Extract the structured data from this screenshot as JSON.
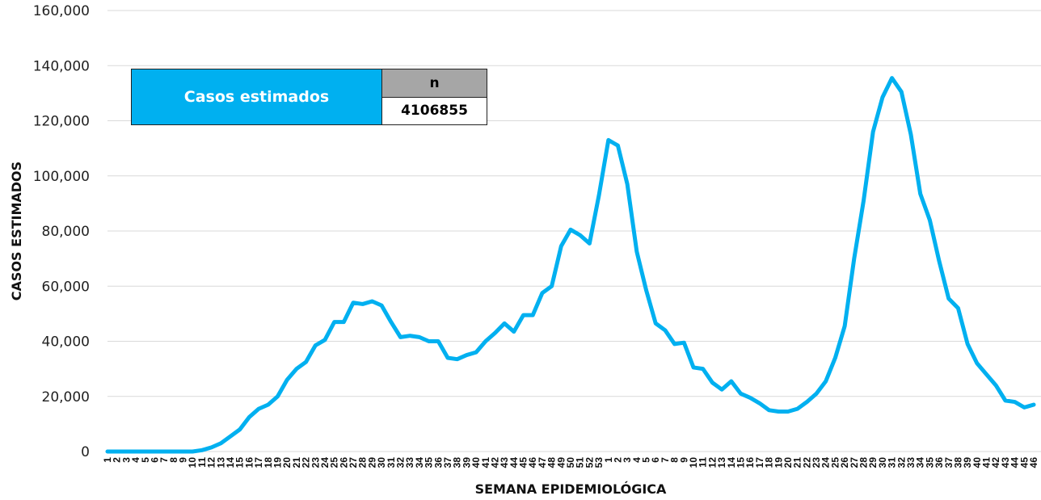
{
  "chart_data": {
    "type": "line",
    "xlabel": "SEMANA EPIDEMIOLÓGICA",
    "ylabel": "CASOS ESTIMADOS",
    "ylim": [
      0,
      160000
    ],
    "yticks": [
      0,
      20000,
      40000,
      60000,
      80000,
      100000,
      120000,
      140000,
      160000
    ],
    "grid": "horizontal",
    "line_color": "#00b0f0",
    "categories": [
      "1",
      "2",
      "3",
      "4",
      "5",
      "6",
      "7",
      "8",
      "9",
      "10",
      "11",
      "12",
      "13",
      "14",
      "15",
      "16",
      "17",
      "18",
      "19",
      "20",
      "21",
      "22",
      "23",
      "24",
      "25",
      "26",
      "27",
      "28",
      "29",
      "30",
      "31",
      "32",
      "33",
      "34",
      "35",
      "36",
      "37",
      "38",
      "39",
      "40",
      "41",
      "42",
      "43",
      "44",
      "45",
      "46",
      "47",
      "48",
      "49",
      "50",
      "51",
      "52",
      "53",
      "1",
      "2",
      "3",
      "4",
      "5",
      "6",
      "7",
      "8",
      "9",
      "10",
      "11",
      "12",
      "13",
      "14",
      "15",
      "16",
      "17",
      "18",
      "19",
      "20",
      "21",
      "22",
      "23",
      "24",
      "25",
      "26",
      "27",
      "28",
      "29",
      "30",
      "31",
      "32",
      "33",
      "34",
      "35",
      "36",
      "37",
      "38",
      "39",
      "40",
      "41",
      "42",
      "43",
      "44",
      "45",
      "46"
    ],
    "series": [
      {
        "values": [
          0,
          0,
          0,
          0,
          0,
          0,
          0,
          0,
          0,
          0,
          500,
          1500,
          3000,
          5500,
          8000,
          12500,
          15500,
          17000,
          20000,
          26000,
          30000,
          32500,
          38500,
          40500,
          47000,
          47000,
          54000,
          53500,
          54500,
          53000,
          47000,
          41500,
          42000,
          41500,
          40000,
          40000,
          34000,
          33500,
          35000,
          36000,
          40000,
          43000,
          46500,
          43500,
          49500,
          49500,
          57500,
          60000,
          74500,
          80500,
          78500,
          75500,
          93000,
          113000,
          111000,
          97000,
          72500,
          58500,
          46500,
          44000,
          39000,
          39500,
          30500,
          30000,
          25000,
          22500,
          25500,
          21000,
          19500,
          17500,
          15000,
          14500,
          14500,
          15500,
          18000,
          21000,
          25500,
          34000,
          45500,
          70000,
          91000,
          116000,
          128500,
          135500,
          130500,
          115000,
          93500,
          84000,
          69000,
          55500,
          52000,
          39000,
          32000,
          28000,
          24000,
          18500,
          18000,
          16000,
          17000
        ]
      }
    ]
  },
  "info_box": {
    "label": "Casos estimados",
    "n_header": "n",
    "n_value": "4106855",
    "label_bg": "#00b0f0",
    "header_bg": "#a6a6a6"
  }
}
